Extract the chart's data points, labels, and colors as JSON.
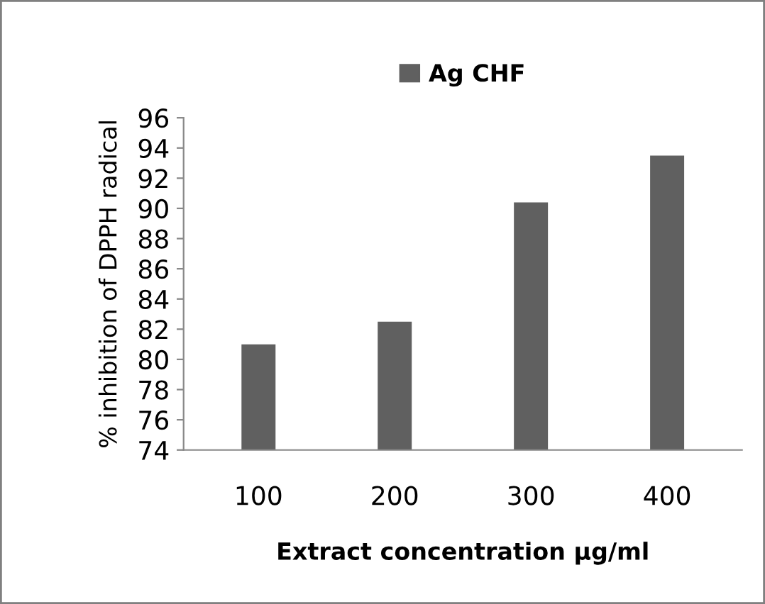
{
  "chart_data": {
    "type": "bar",
    "xlabel": "Extract concentration µg/ml",
    "ylabel": "% inhibition of DPPH radical",
    "categories": [
      "100",
      "200",
      "300",
      "400"
    ],
    "series": [
      {
        "name": "Ag CHF",
        "color": "#606060",
        "values": [
          81.0,
          82.5,
          90.4,
          93.5
        ]
      }
    ],
    "ylim": [
      74,
      96
    ],
    "yticks": [
      74,
      76,
      78,
      80,
      82,
      84,
      86,
      88,
      90,
      92,
      94,
      96
    ],
    "grid": false,
    "legend": "top"
  }
}
